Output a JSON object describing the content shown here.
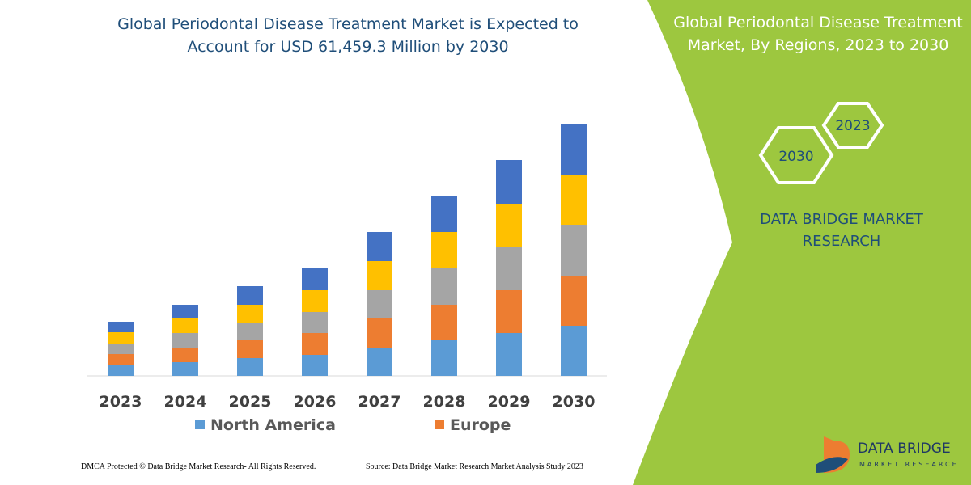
{
  "chart_data": {
    "type": "stacked-bar",
    "title": "Global Periodontal Disease Treatment Market is Expected to Account for USD 61,459.3 Million by 2030",
    "categories": [
      "2023",
      "2024",
      "2025",
      "2026",
      "2027",
      "2028",
      "2029",
      "2030"
    ],
    "series": [
      {
        "name": "North America",
        "color": "#5b9bd5",
        "values": [
          13,
          17,
          22,
          26,
          35,
          44,
          53,
          62
        ]
      },
      {
        "name": "Europe",
        "color": "#ed7d31",
        "values": [
          14,
          18,
          22,
          27,
          36,
          44,
          53,
          62
        ]
      },
      {
        "color": "#a5a5a5",
        "values": [
          13,
          18,
          22,
          26,
          35,
          45,
          54,
          63
        ]
      },
      {
        "color": "#ffc000",
        "values": [
          14,
          18,
          22,
          27,
          36,
          45,
          53,
          62
        ]
      },
      {
        "color": "#4472c4",
        "values": [
          13,
          17,
          23,
          27,
          36,
          44,
          54,
          62
        ]
      }
    ],
    "ylim": [
      0,
      311
    ]
  },
  "side_panel": {
    "title": "Global Periodontal Disease Treatment Market, By Regions, 2023 to 2030",
    "hexagons": [
      "2023",
      "2030"
    ],
    "brand": "DATA BRIDGE MARKET RESEARCH"
  },
  "footer": {
    "copyright": "DMCA Protected © Data Bridge Market Research- All Rights Reserved.",
    "source": "Source: Data Bridge Market Research Market Analysis Study 2023"
  },
  "logo": {
    "name": "DATA BRIDGE",
    "tagline": "MARKET RESEARCH"
  }
}
